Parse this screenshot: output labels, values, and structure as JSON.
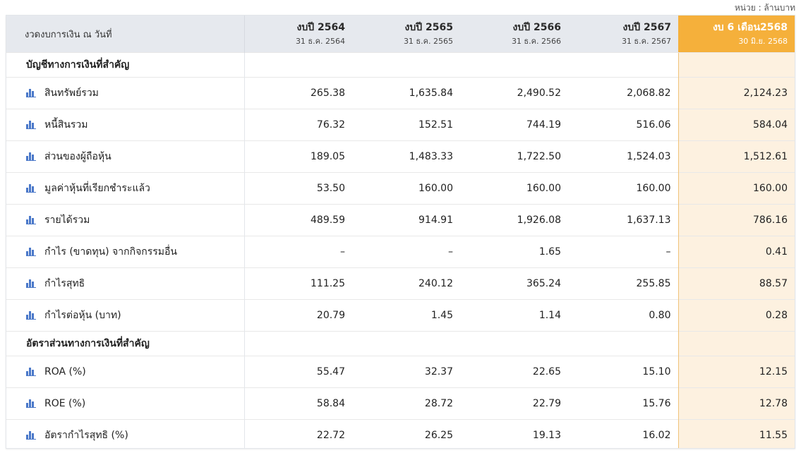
{
  "unit_label": "หน่วย : ล้านบาท",
  "header": {
    "first": "งวดงบการเงิน ณ วันที่",
    "columns": [
      {
        "year": "งบปี 2564",
        "date": "31 ธ.ค. 2564"
      },
      {
        "year": "งบปี 2565",
        "date": "31 ธ.ค. 2565"
      },
      {
        "year": "งบปี 2566",
        "date": "31 ธ.ค. 2566"
      },
      {
        "year": "งบปี 2567",
        "date": "31 ธ.ค. 2567"
      },
      {
        "year": "งบ 6 เดือน2568",
        "date": "30 มิ.ย. 2568"
      }
    ]
  },
  "sections": [
    {
      "title": "บัญชีทางการเงินที่สำคัญ",
      "rows": [
        {
          "label": "สินทรัพย์รวม",
          "values": [
            "265.38",
            "1,635.84",
            "2,490.52",
            "2,068.82",
            "2,124.23"
          ]
        },
        {
          "label": "หนี้สินรวม",
          "values": [
            "76.32",
            "152.51",
            "744.19",
            "516.06",
            "584.04"
          ]
        },
        {
          "label": "ส่วนของผู้ถือหุ้น",
          "values": [
            "189.05",
            "1,483.33",
            "1,722.50",
            "1,524.03",
            "1,512.61"
          ]
        },
        {
          "label": "มูลค่าหุ้นที่เรียกชำระแล้ว",
          "values": [
            "53.50",
            "160.00",
            "160.00",
            "160.00",
            "160.00"
          ]
        },
        {
          "label": "รายได้รวม",
          "values": [
            "489.59",
            "914.91",
            "1,926.08",
            "1,637.13",
            "786.16"
          ]
        },
        {
          "label": "กำไร (ขาดทุน) จากกิจกรรมอื่น",
          "values": [
            "–",
            "–",
            "1.65",
            "–",
            "0.41"
          ]
        },
        {
          "label": "กำไรสุทธิ",
          "values": [
            "111.25",
            "240.12",
            "365.24",
            "255.85",
            "88.57"
          ]
        },
        {
          "label": "กำไรต่อหุ้น (บาท)",
          "values": [
            "20.79",
            "1.45",
            "1.14",
            "0.80",
            "0.28"
          ]
        }
      ]
    },
    {
      "title": "อัตราส่วนทางการเงินที่สำคัญ",
      "rows": [
        {
          "label": "ROA (%)",
          "values": [
            "55.47",
            "32.37",
            "22.65",
            "15.10",
            "12.15"
          ]
        },
        {
          "label": "ROE (%)",
          "values": [
            "58.84",
            "28.72",
            "22.79",
            "15.76",
            "12.78"
          ]
        },
        {
          "label": "อัตรากำไรสุทธิ (%)",
          "values": [
            "22.72",
            "26.25",
            "19.13",
            "16.02",
            "11.55"
          ]
        }
      ]
    }
  ],
  "colors": {
    "highlight_header": "#f5b03b",
    "highlight_cell": "#fdf1e0",
    "icon": "#4a78c9",
    "header_bg": "#e6e9ee"
  },
  "icons": {
    "row_chart": "bar-chart-icon"
  }
}
